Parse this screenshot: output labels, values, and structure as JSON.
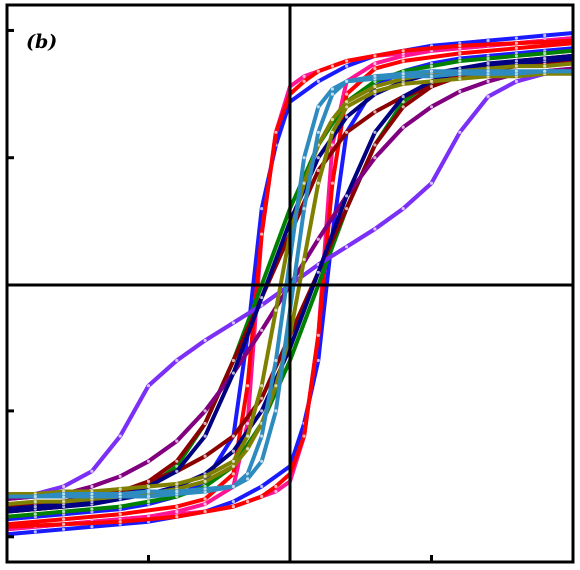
{
  "chart_data": {
    "type": "line",
    "panel_label": "(b)",
    "title": "",
    "xlabel": "",
    "ylabel": "",
    "xlim": [
      -1,
      1
    ],
    "ylim": [
      -1.1,
      1.1
    ],
    "grid": false,
    "legend": "none",
    "series": [
      {
        "color": "#1a1aff",
        "branch": "up",
        "x": [
          -1,
          -0.9,
          -0.8,
          -0.7,
          -0.6,
          -0.5,
          -0.4,
          -0.3,
          -0.2,
          -0.1,
          0,
          0.05,
          0.1,
          0.15,
          0.2,
          0.3,
          0.4,
          0.5,
          0.6,
          0.7,
          0.8,
          0.9,
          1
        ],
        "y": [
          -0.99,
          -0.98,
          -0.97,
          -0.96,
          -0.95,
          -0.94,
          -0.92,
          -0.9,
          -0.86,
          -0.8,
          -0.72,
          -0.55,
          -0.3,
          0.2,
          0.6,
          0.78,
          0.84,
          0.87,
          0.89,
          0.9,
          0.91,
          0.92,
          0.93
        ]
      },
      {
        "color": "#1a1aff",
        "branch": "down",
        "x": [
          1,
          0.9,
          0.8,
          0.7,
          0.6,
          0.5,
          0.4,
          0.3,
          0.2,
          0.1,
          0,
          -0.05,
          -0.1,
          -0.15,
          -0.2,
          -0.3,
          -0.4,
          -0.5,
          -0.6,
          -0.7,
          -0.8,
          -0.9,
          -1
        ],
        "y": [
          0.99,
          0.98,
          0.97,
          0.96,
          0.95,
          0.94,
          0.92,
          0.9,
          0.86,
          0.8,
          0.72,
          0.55,
          0.3,
          -0.2,
          -0.6,
          -0.78,
          -0.84,
          -0.87,
          -0.89,
          -0.9,
          -0.91,
          -0.92,
          -0.93
        ]
      },
      {
        "color": "#ff1493",
        "branch": "up",
        "x": [
          -1,
          -0.9,
          -0.8,
          -0.7,
          -0.6,
          -0.5,
          -0.4,
          -0.3,
          -0.2,
          -0.15,
          -0.1,
          -0.05,
          0,
          0.05,
          0.1,
          0.15,
          0.2,
          0.3,
          0.4,
          0.5,
          0.6,
          0.7,
          0.8,
          0.9,
          1
        ],
        "y": [
          -0.97,
          -0.96,
          -0.95,
          -0.94,
          -0.93,
          -0.92,
          -0.91,
          -0.9,
          -0.88,
          -0.86,
          -0.84,
          -0.82,
          -0.78,
          -0.6,
          -0.2,
          0.55,
          0.8,
          0.87,
          0.9,
          0.92,
          0.93,
          0.94,
          0.95,
          0.96,
          0.97
        ]
      },
      {
        "color": "#ff1493",
        "branch": "down",
        "x": [
          1,
          0.9,
          0.8,
          0.7,
          0.6,
          0.5,
          0.4,
          0.3,
          0.2,
          0.15,
          0.1,
          0.05,
          0,
          -0.05,
          -0.1,
          -0.15,
          -0.2,
          -0.3,
          -0.4,
          -0.5,
          -0.6,
          -0.7,
          -0.8,
          -0.9,
          -1
        ],
        "y": [
          0.97,
          0.96,
          0.95,
          0.94,
          0.93,
          0.92,
          0.91,
          0.9,
          0.88,
          0.86,
          0.84,
          0.82,
          0.78,
          0.6,
          0.2,
          -0.55,
          -0.8,
          -0.87,
          -0.9,
          -0.92,
          -0.93,
          -0.94,
          -0.95,
          -0.96,
          -0.97
        ]
      },
      {
        "color": "#ff0000",
        "branch": "up",
        "x": [
          -1,
          -0.8,
          -0.6,
          -0.4,
          -0.3,
          -0.2,
          -0.15,
          -0.1,
          -0.05,
          0,
          0.05,
          0.1,
          0.15,
          0.2,
          0.3,
          0.4,
          0.6,
          0.8,
          1
        ],
        "y": [
          -0.96,
          -0.95,
          -0.94,
          -0.92,
          -0.9,
          -0.88,
          -0.86,
          -0.84,
          -0.8,
          -0.75,
          -0.6,
          -0.2,
          0.4,
          0.75,
          0.85,
          0.88,
          0.91,
          0.93,
          0.95
        ]
      },
      {
        "color": "#ff0000",
        "branch": "down",
        "x": [
          1,
          0.8,
          0.6,
          0.4,
          0.3,
          0.2,
          0.15,
          0.1,
          0.05,
          0,
          -0.05,
          -0.1,
          -0.15,
          -0.2,
          -0.3,
          -0.4,
          -0.6,
          -0.8,
          -1
        ],
        "y": [
          0.96,
          0.95,
          0.94,
          0.92,
          0.9,
          0.88,
          0.86,
          0.84,
          0.8,
          0.75,
          0.6,
          0.2,
          -0.4,
          -0.75,
          -0.85,
          -0.88,
          -0.91,
          -0.93,
          -0.95
        ]
      },
      {
        "color": "#008000",
        "branch": "up",
        "x": [
          -1,
          -0.9,
          -0.8,
          -0.7,
          -0.6,
          -0.5,
          -0.4,
          -0.3,
          -0.2,
          -0.1,
          0,
          0.1,
          0.2,
          0.3,
          0.4,
          0.5,
          0.6,
          0.7,
          0.8,
          0.9,
          1
        ],
        "y": [
          -0.92,
          -0.91,
          -0.9,
          -0.89,
          -0.88,
          -0.86,
          -0.84,
          -0.8,
          -0.72,
          -0.55,
          -0.3,
          0.0,
          0.3,
          0.55,
          0.72,
          0.8,
          0.84,
          0.86,
          0.88,
          0.89,
          0.9
        ]
      },
      {
        "color": "#008000",
        "branch": "down",
        "x": [
          1,
          0.9,
          0.8,
          0.7,
          0.6,
          0.5,
          0.4,
          0.3,
          0.2,
          0.1,
          0,
          -0.1,
          -0.2,
          -0.3,
          -0.4,
          -0.5,
          -0.6,
          -0.7,
          -0.8,
          -0.9,
          -1
        ],
        "y": [
          0.92,
          0.91,
          0.9,
          0.89,
          0.88,
          0.86,
          0.84,
          0.8,
          0.72,
          0.55,
          0.3,
          0.0,
          -0.3,
          -0.55,
          -0.72,
          -0.8,
          -0.84,
          -0.86,
          -0.88,
          -0.89,
          -0.9
        ]
      },
      {
        "color": "#8b0000",
        "branch": "up",
        "x": [
          -1,
          -0.9,
          -0.8,
          -0.7,
          -0.6,
          -0.5,
          -0.4,
          -0.3,
          -0.2,
          -0.1,
          0,
          0.1,
          0.2,
          0.3,
          0.4,
          0.5,
          0.6,
          0.7,
          0.8,
          0.9,
          1
        ],
        "y": [
          -0.88,
          -0.87,
          -0.86,
          -0.84,
          -0.82,
          -0.78,
          -0.74,
          -0.68,
          -0.6,
          -0.45,
          -0.2,
          0.05,
          0.3,
          0.55,
          0.7,
          0.78,
          0.83,
          0.86,
          0.88,
          0.89,
          0.9
        ]
      },
      {
        "color": "#8b0000",
        "branch": "down",
        "x": [
          1,
          0.9,
          0.8,
          0.7,
          0.6,
          0.5,
          0.4,
          0.3,
          0.2,
          0.1,
          0,
          -0.1,
          -0.2,
          -0.3,
          -0.4,
          -0.5,
          -0.6,
          -0.7,
          -0.8,
          -0.9,
          -1
        ],
        "y": [
          0.88,
          0.87,
          0.86,
          0.84,
          0.82,
          0.78,
          0.74,
          0.68,
          0.6,
          0.45,
          0.2,
          -0.05,
          -0.3,
          -0.55,
          -0.7,
          -0.78,
          -0.83,
          -0.86,
          -0.88,
          -0.89,
          -0.9
        ]
      },
      {
        "color": "#800080",
        "branch": "up",
        "x": [
          -1,
          -0.9,
          -0.8,
          -0.7,
          -0.6,
          -0.5,
          -0.4,
          -0.3,
          -0.2,
          -0.1,
          0,
          0.1,
          0.2,
          0.3,
          0.4,
          0.5,
          0.6,
          0.7,
          0.8,
          0.9,
          1
        ],
        "y": [
          -0.85,
          -0.84,
          -0.83,
          -0.8,
          -0.76,
          -0.7,
          -0.62,
          -0.5,
          -0.35,
          -0.18,
          0.0,
          0.18,
          0.35,
          0.5,
          0.62,
          0.7,
          0.76,
          0.8,
          0.83,
          0.84,
          0.85
        ]
      },
      {
        "color": "#800080",
        "branch": "down",
        "x": [
          1,
          0.9,
          0.8,
          0.7,
          0.6,
          0.5,
          0.4,
          0.3,
          0.2,
          0.1,
          0,
          -0.1,
          -0.2,
          -0.3,
          -0.4,
          -0.5,
          -0.6,
          -0.7,
          -0.8,
          -0.9,
          -1
        ],
        "y": [
          0.85,
          0.84,
          0.83,
          0.8,
          0.76,
          0.7,
          0.62,
          0.5,
          0.35,
          0.18,
          0.0,
          -0.18,
          -0.35,
          -0.5,
          -0.62,
          -0.7,
          -0.76,
          -0.8,
          -0.83,
          -0.84,
          -0.85
        ]
      },
      {
        "color": "#7b2ff7",
        "branch": "up",
        "x": [
          -1,
          -0.9,
          -0.8,
          -0.7,
          -0.6,
          -0.5,
          -0.4,
          -0.3,
          -0.2,
          -0.1,
          0,
          0.1,
          0.2,
          0.3,
          0.4,
          0.5,
          0.6,
          0.7,
          0.8,
          0.9,
          1
        ],
        "y": [
          -0.84,
          -0.83,
          -0.8,
          -0.74,
          -0.6,
          -0.4,
          -0.3,
          -0.22,
          -0.15,
          -0.08,
          0.0,
          0.08,
          0.15,
          0.22,
          0.3,
          0.4,
          0.6,
          0.74,
          0.8,
          0.83,
          0.84
        ]
      },
      {
        "color": "#7b2ff7",
        "branch": "down",
        "x": [
          1,
          0.9,
          0.8,
          0.7,
          0.6,
          0.5,
          0.4,
          0.3,
          0.2,
          0.1,
          0,
          -0.1,
          -0.2,
          -0.3,
          -0.4,
          -0.5,
          -0.6,
          -0.7,
          -0.8,
          -0.9,
          -1
        ],
        "y": [
          0.84,
          0.83,
          0.8,
          0.74,
          0.6,
          0.4,
          0.3,
          0.22,
          0.15,
          0.08,
          0.0,
          -0.08,
          -0.15,
          -0.22,
          -0.3,
          -0.4,
          -0.6,
          -0.74,
          -0.8,
          -0.83,
          -0.84
        ]
      },
      {
        "color": "#000080",
        "branch": "up",
        "x": [
          -1,
          -0.9,
          -0.8,
          -0.7,
          -0.6,
          -0.5,
          -0.4,
          -0.3,
          -0.2,
          -0.1,
          0,
          0.1,
          0.2,
          0.3,
          0.4,
          0.5,
          0.6,
          0.7,
          0.8,
          0.9,
          1
        ],
        "y": [
          -0.9,
          -0.89,
          -0.88,
          -0.87,
          -0.85,
          -0.83,
          -0.8,
          -0.75,
          -0.66,
          -0.5,
          -0.25,
          0.05,
          0.35,
          0.6,
          0.74,
          0.8,
          0.84,
          0.86,
          0.87,
          0.88,
          0.89
        ]
      },
      {
        "color": "#000080",
        "branch": "down",
        "x": [
          1,
          0.9,
          0.8,
          0.7,
          0.6,
          0.5,
          0.4,
          0.3,
          0.2,
          0.1,
          0,
          -0.1,
          -0.2,
          -0.3,
          -0.4,
          -0.5,
          -0.6,
          -0.7,
          -0.8,
          -0.9,
          -1
        ],
        "y": [
          0.9,
          0.89,
          0.88,
          0.87,
          0.85,
          0.83,
          0.8,
          0.75,
          0.66,
          0.5,
          0.25,
          -0.05,
          -0.35,
          -0.6,
          -0.74,
          -0.8,
          -0.84,
          -0.86,
          -0.87,
          -0.88,
          -0.89
        ]
      },
      {
        "color": "#808000",
        "branch": "up",
        "x": [
          -1,
          -0.9,
          -0.8,
          -0.7,
          -0.6,
          -0.5,
          -0.4,
          -0.3,
          -0.2,
          -0.15,
          -0.1,
          -0.05,
          0,
          0.05,
          0.1,
          0.15,
          0.2,
          0.3,
          0.4,
          0.5,
          0.6,
          0.7,
          0.8,
          0.9,
          1
        ],
        "y": [
          -0.87,
          -0.86,
          -0.86,
          -0.85,
          -0.84,
          -0.83,
          -0.81,
          -0.78,
          -0.72,
          -0.65,
          -0.55,
          -0.4,
          -0.2,
          0.1,
          0.4,
          0.6,
          0.7,
          0.76,
          0.79,
          0.8,
          0.81,
          0.82,
          0.82,
          0.83,
          0.83
        ]
      },
      {
        "color": "#808000",
        "branch": "down",
        "x": [
          1,
          0.9,
          0.8,
          0.7,
          0.6,
          0.5,
          0.4,
          0.3,
          0.2,
          0.15,
          0.1,
          0.05,
          0,
          -0.05,
          -0.1,
          -0.15,
          -0.2,
          -0.3,
          -0.4,
          -0.5,
          -0.6,
          -0.7,
          -0.8,
          -0.9,
          -1
        ],
        "y": [
          0.87,
          0.86,
          0.86,
          0.85,
          0.84,
          0.83,
          0.81,
          0.78,
          0.72,
          0.65,
          0.55,
          0.4,
          0.2,
          -0.1,
          -0.4,
          -0.6,
          -0.7,
          -0.76,
          -0.79,
          -0.8,
          -0.81,
          -0.82,
          -0.82,
          -0.83,
          -0.83
        ]
      },
      {
        "color": "#2e8bc0",
        "branch": "up",
        "x": [
          -1,
          -0.9,
          -0.8,
          -0.7,
          -0.6,
          -0.5,
          -0.4,
          -0.3,
          -0.2,
          -0.15,
          -0.1,
          -0.05,
          0,
          0.05,
          0.1,
          0.15,
          0.2,
          0.3,
          0.4,
          0.5,
          0.6,
          0.7,
          0.8,
          0.9,
          1
        ],
        "y": [
          -0.84,
          -0.84,
          -0.84,
          -0.84,
          -0.84,
          -0.84,
          -0.83,
          -0.82,
          -0.8,
          -0.75,
          -0.6,
          -0.3,
          0.1,
          0.5,
          0.7,
          0.77,
          0.8,
          0.81,
          0.82,
          0.82,
          0.83,
          0.83,
          0.83,
          0.84,
          0.84
        ]
      },
      {
        "color": "#2e8bc0",
        "branch": "down",
        "x": [
          1,
          0.9,
          0.8,
          0.7,
          0.6,
          0.5,
          0.4,
          0.3,
          0.2,
          0.15,
          0.1,
          0.05,
          0,
          -0.05,
          -0.1,
          -0.15,
          -0.2,
          -0.3,
          -0.4,
          -0.5,
          -0.6,
          -0.7,
          -0.8,
          -0.9,
          -1
        ],
        "y": [
          0.84,
          0.84,
          0.84,
          0.84,
          0.84,
          0.84,
          0.83,
          0.82,
          0.8,
          0.75,
          0.6,
          0.3,
          -0.1,
          -0.5,
          -0.7,
          -0.77,
          -0.8,
          -0.81,
          -0.82,
          -0.82,
          -0.83,
          -0.83,
          -0.83,
          -0.84,
          -0.84
        ]
      }
    ]
  }
}
